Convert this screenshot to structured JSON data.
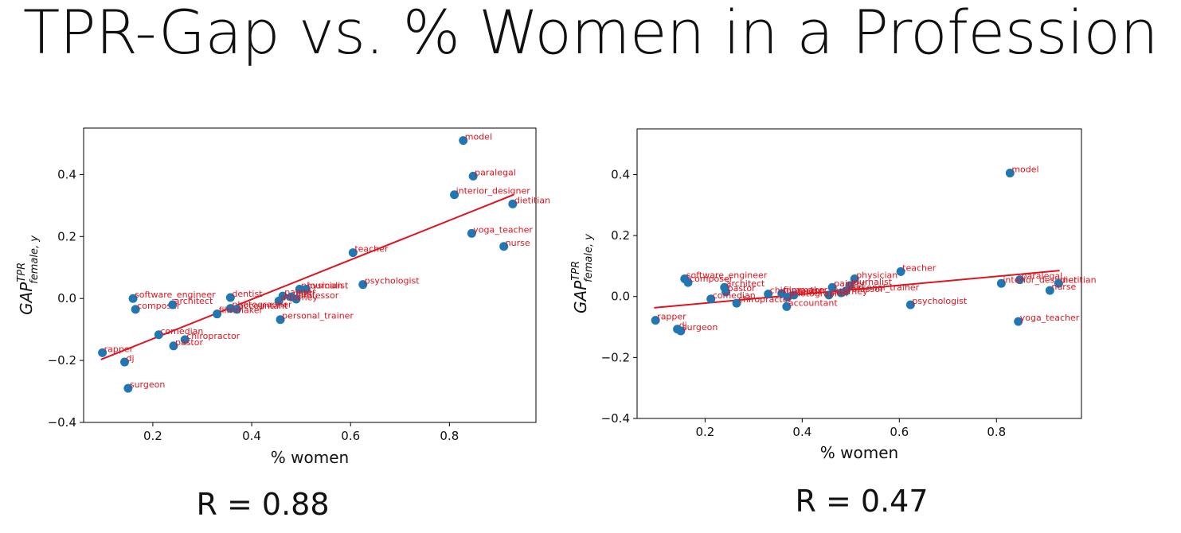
{
  "slide": {
    "title": "TPR-Gap vs. % Women in a Profession",
    "r_left": "R = 0.88",
    "r_right": "R = 0.47"
  },
  "colors": {
    "point": "#1f77b4",
    "label": "#e0141e",
    "fit": "#e0141e"
  },
  "chart_data": [
    {
      "type": "scatter",
      "xlabel": "% women",
      "ylabel_base": "GAP",
      "ylabel_sup": "TPR",
      "ylabel_sub": "female, y",
      "xlim": [
        0.06,
        0.975
      ],
      "ylim": [
        -0.4,
        0.55
      ],
      "xticks": [
        0.2,
        0.4,
        0.6,
        0.8
      ],
      "yticks": [
        -0.4,
        -0.2,
        0.0,
        0.2,
        0.4
      ],
      "fit": {
        "x": [
          0.095,
          0.93
        ],
        "y": [
          -0.197,
          0.335
        ]
      },
      "points": [
        {
          "x": 0.828,
          "y": 0.51,
          "label": "model"
        },
        {
          "x": 0.848,
          "y": 0.395,
          "label": "paralegal"
        },
        {
          "x": 0.81,
          "y": 0.335,
          "label": "interior_designer"
        },
        {
          "x": 0.928,
          "y": 0.305,
          "label": "dietitian"
        },
        {
          "x": 0.845,
          "y": 0.21,
          "label": "yoga_teacher"
        },
        {
          "x": 0.91,
          "y": 0.168,
          "label": "nurse"
        },
        {
          "x": 0.605,
          "y": 0.148,
          "label": "teacher"
        },
        {
          "x": 0.625,
          "y": 0.045,
          "label": "psychologist"
        },
        {
          "x": 0.16,
          "y": 0.0,
          "label": "software_engineer"
        },
        {
          "x": 0.165,
          "y": -0.035,
          "label": "composer"
        },
        {
          "x": 0.24,
          "y": -0.02,
          "label": "architect"
        },
        {
          "x": 0.357,
          "y": 0.003,
          "label": "dentist"
        },
        {
          "x": 0.497,
          "y": 0.03,
          "label": "physician"
        },
        {
          "x": 0.51,
          "y": 0.03,
          "label": "journalist"
        },
        {
          "x": 0.463,
          "y": 0.008,
          "label": "painter"
        },
        {
          "x": 0.48,
          "y": 0.005,
          "label": "poet"
        },
        {
          "x": 0.49,
          "y": -0.002,
          "label": "professor"
        },
        {
          "x": 0.455,
          "y": -0.008,
          "label": "attorney"
        },
        {
          "x": 0.357,
          "y": -0.032,
          "label": "photographer"
        },
        {
          "x": 0.37,
          "y": -0.035,
          "label": "accountant"
        },
        {
          "x": 0.33,
          "y": -0.05,
          "label": "filmmaker"
        },
        {
          "x": 0.458,
          "y": -0.068,
          "label": "personal_trainer"
        },
        {
          "x": 0.212,
          "y": -0.117,
          "label": "comedian"
        },
        {
          "x": 0.265,
          "y": -0.133,
          "label": "chiropractor"
        },
        {
          "x": 0.242,
          "y": -0.153,
          "label": "pastor"
        },
        {
          "x": 0.098,
          "y": -0.175,
          "label": "rapper"
        },
        {
          "x": 0.143,
          "y": -0.205,
          "label": "dj"
        },
        {
          "x": 0.15,
          "y": -0.29,
          "label": "surgeon"
        }
      ]
    },
    {
      "type": "scatter",
      "xlabel": "% women",
      "ylabel_base": "GAP",
      "ylabel_sup": "TPR",
      "ylabel_sub": "female, y",
      "xlim": [
        0.06,
        0.975
      ],
      "ylim": [
        -0.4,
        0.55
      ],
      "xticks": [
        0.2,
        0.4,
        0.6,
        0.8
      ],
      "yticks": [
        -0.4,
        -0.2,
        0.0,
        0.2,
        0.4
      ],
      "fit": {
        "x": [
          0.095,
          0.93
        ],
        "y": [
          -0.037,
          0.085
        ]
      },
      "points": [
        {
          "x": 0.828,
          "y": 0.405,
          "label": "model"
        },
        {
          "x": 0.848,
          "y": 0.055,
          "label": "paralegal"
        },
        {
          "x": 0.81,
          "y": 0.043,
          "label": "interior_designer"
        },
        {
          "x": 0.928,
          "y": 0.043,
          "label": "dietitian"
        },
        {
          "x": 0.91,
          "y": 0.02,
          "label": "nurse"
        },
        {
          "x": 0.845,
          "y": -0.082,
          "label": "yoga_teacher"
        },
        {
          "x": 0.603,
          "y": 0.082,
          "label": "teacher"
        },
        {
          "x": 0.623,
          "y": -0.027,
          "label": "psychologist"
        },
        {
          "x": 0.508,
          "y": 0.058,
          "label": "physician"
        },
        {
          "x": 0.498,
          "y": 0.036,
          "label": "journalist"
        },
        {
          "x": 0.462,
          "y": 0.03,
          "label": "painter"
        },
        {
          "x": 0.49,
          "y": 0.018,
          "label": "personal_trainer"
        },
        {
          "x": 0.48,
          "y": 0.012,
          "label": "professor"
        },
        {
          "x": 0.455,
          "y": 0.005,
          "label": "attorney"
        },
        {
          "x": 0.358,
          "y": 0.01,
          "label": "filmmaker"
        },
        {
          "x": 0.383,
          "y": 0.005,
          "label": "dentist"
        },
        {
          "x": 0.37,
          "y": -0.002,
          "label": "photographer"
        },
        {
          "x": 0.368,
          "y": -0.033,
          "label": "accountant"
        },
        {
          "x": 0.33,
          "y": 0.008,
          "label": "chiropractor"
        },
        {
          "x": 0.158,
          "y": 0.058,
          "label": "software_engineer"
        },
        {
          "x": 0.165,
          "y": 0.046,
          "label": "composer"
        },
        {
          "x": 0.24,
          "y": 0.03,
          "label": "architect"
        },
        {
          "x": 0.243,
          "y": 0.015,
          "label": "pastor"
        },
        {
          "x": 0.212,
          "y": -0.008,
          "label": "comedian"
        },
        {
          "x": 0.265,
          "y": -0.022,
          "label": "chiropractor"
        },
        {
          "x": 0.098,
          "y": -0.078,
          "label": "rapper"
        },
        {
          "x": 0.143,
          "y": -0.107,
          "label": "dj"
        },
        {
          "x": 0.15,
          "y": -0.113,
          "label": "surgeon"
        }
      ]
    }
  ]
}
